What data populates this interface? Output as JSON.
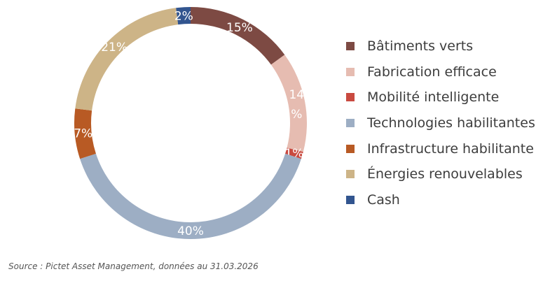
{
  "chart_data": {
    "type": "pie",
    "variant": "donut",
    "categories": [
      "Bâtiments verts",
      "Fabrication efficace",
      "Mobilité intelligente",
      "Technologies habilitantes",
      "Infrastructure habilitante",
      "Énergies renouvelables",
      "Cash"
    ],
    "values": [
      15,
      14,
      1,
      40,
      7,
      21,
      2
    ],
    "value_labels": [
      "15%",
      "14 %",
      "1%",
      "40%",
      "7%",
      "21%",
      "2%"
    ],
    "colors": [
      "#7d4a43",
      "#e6bcb1",
      "#c94a40",
      "#9daec4",
      "#b85a24",
      "#cdb487",
      "#32558f"
    ],
    "legend_position": "right"
  },
  "source_note": "Source : Pictet Asset Management, données au 31.03.2026"
}
